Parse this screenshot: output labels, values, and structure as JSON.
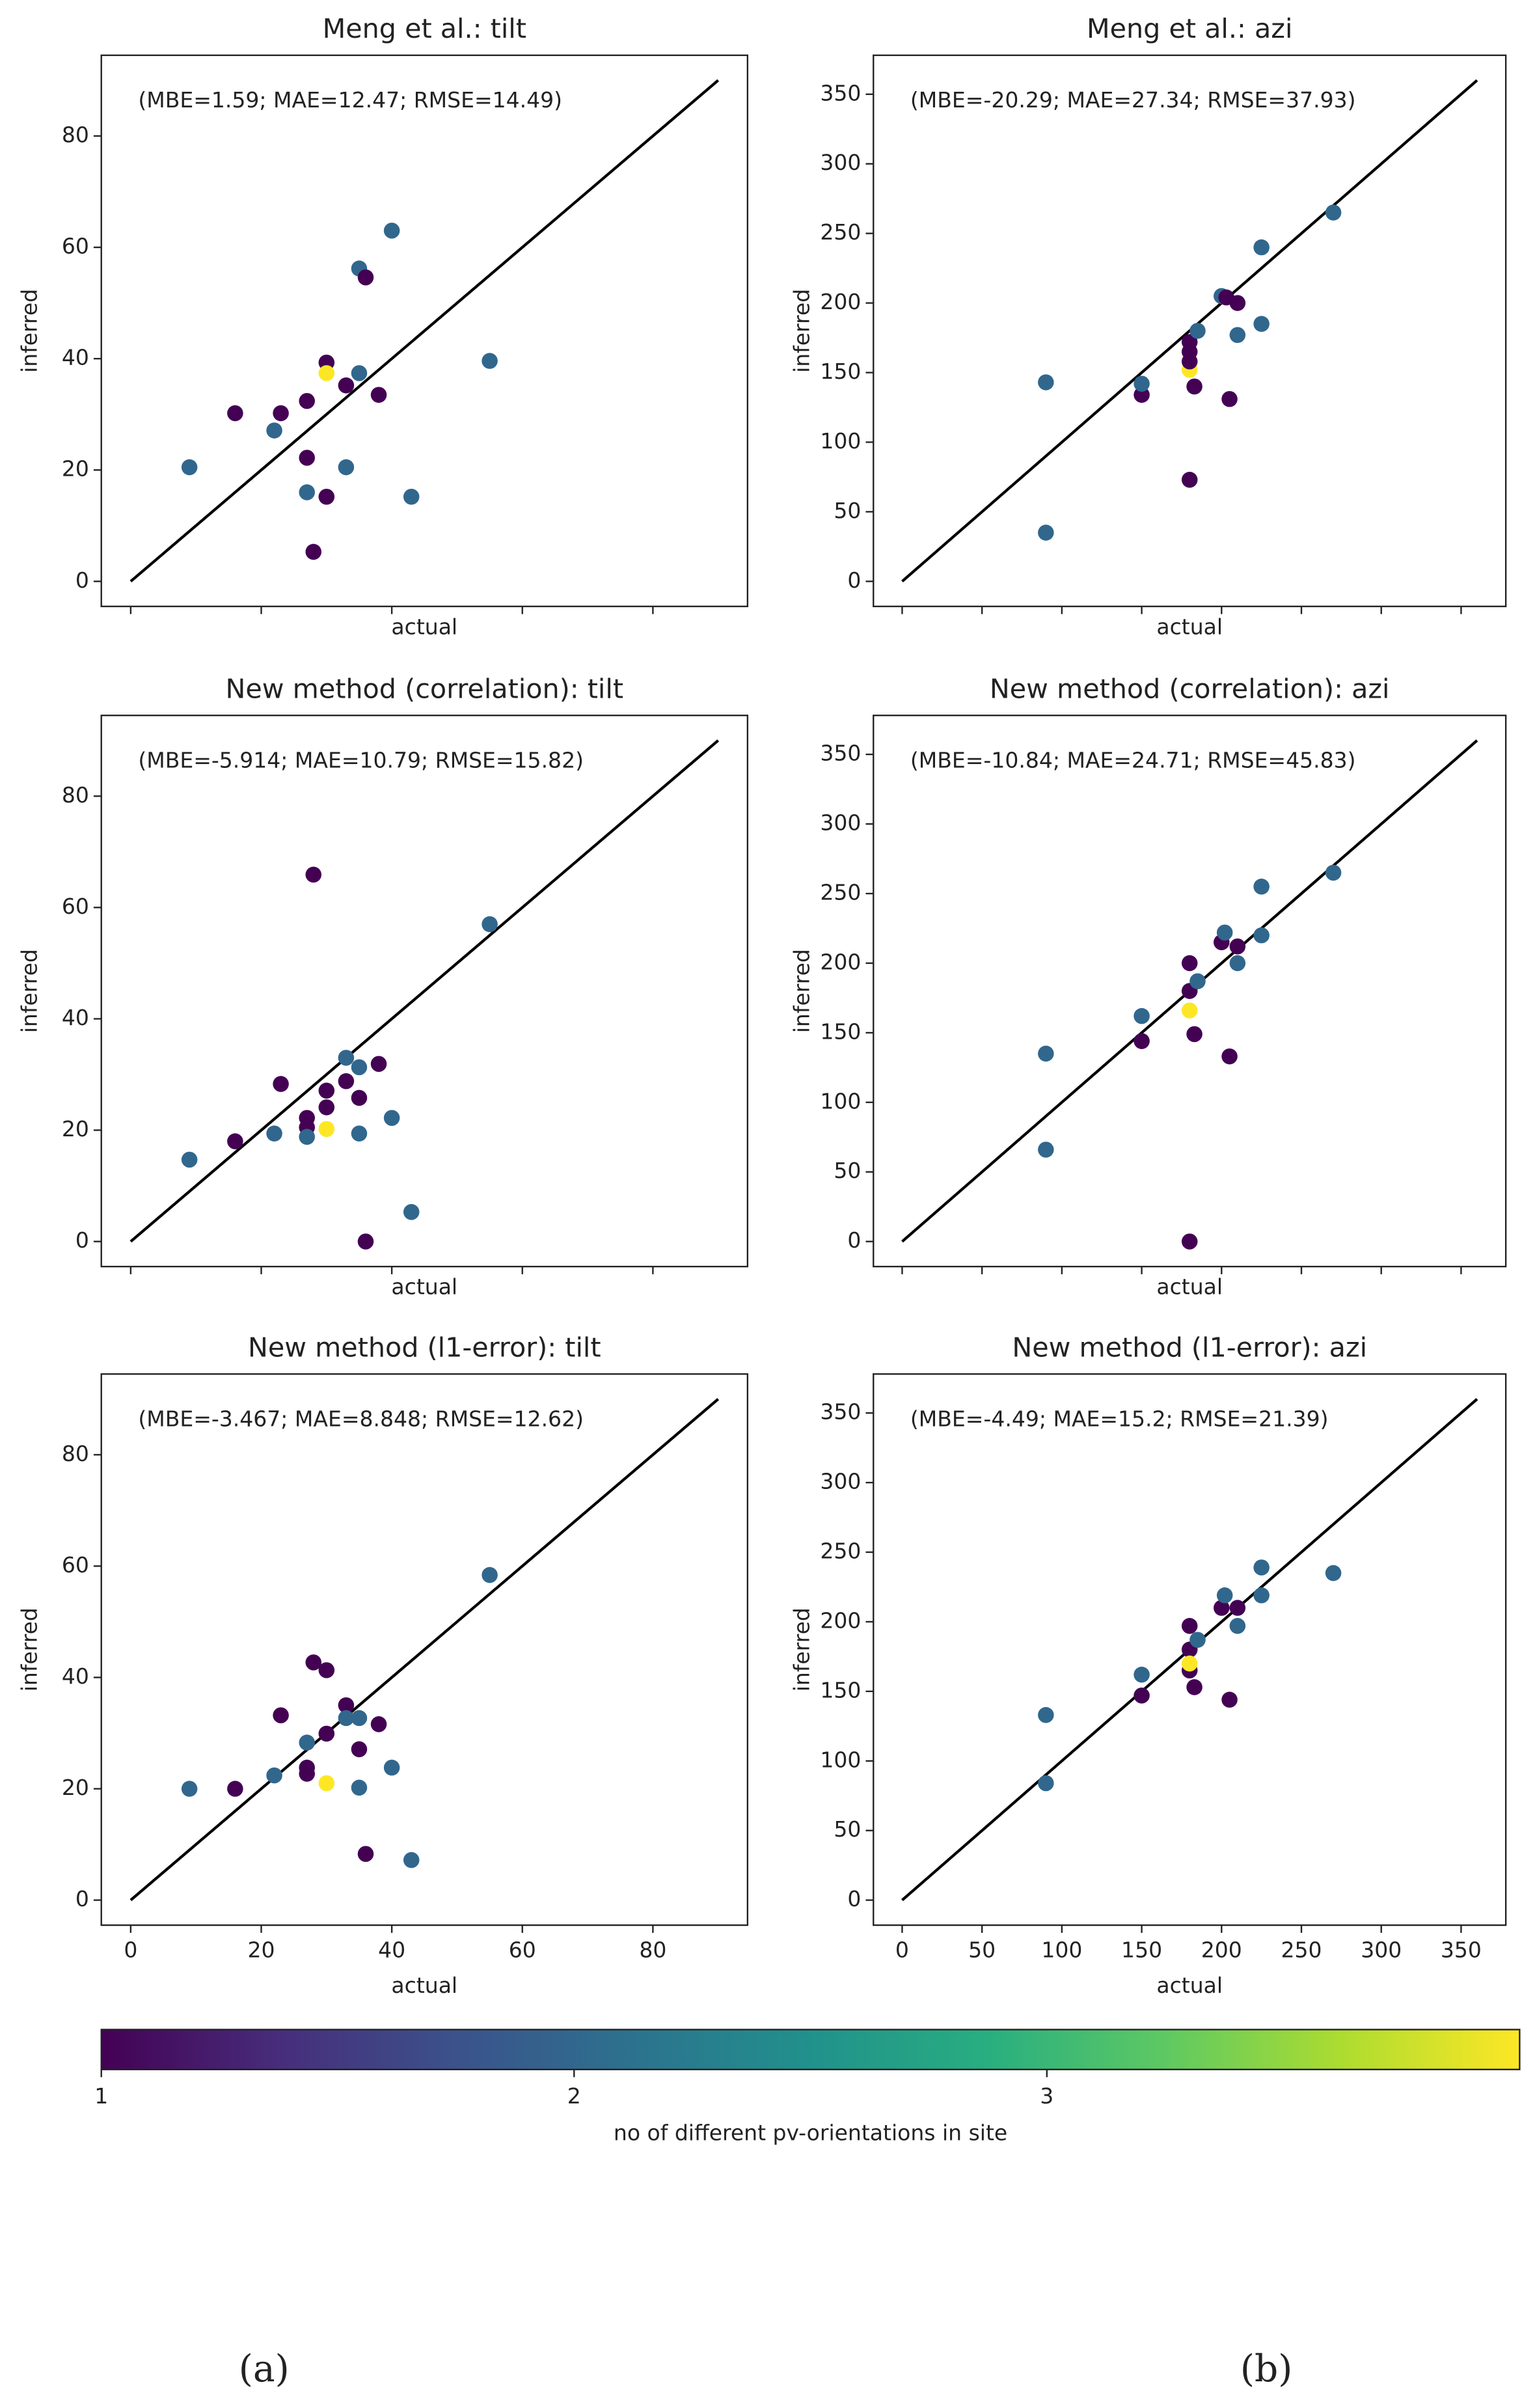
{
  "chart_data": [
    {
      "type": "scatter",
      "title": "Meng et al.: tilt",
      "annotation": "(MBE=1.59; MAE=12.47; RMSE=14.49)",
      "xlabel": "actual",
      "ylabel": "inferred",
      "show_xtick_labels": false,
      "x": [
        9,
        16,
        22,
        23,
        27,
        27,
        27,
        28,
        30,
        30,
        30,
        33,
        33,
        35,
        35,
        36,
        38,
        40,
        43,
        55
      ],
      "values": [
        20.5,
        30.2,
        27.1,
        30.2,
        32.4,
        22.2,
        16,
        5.3,
        39.3,
        37.4,
        15.2,
        35.2,
        20.5,
        37.4,
        56.2,
        54.6,
        33.5,
        63,
        15.2,
        39.6
      ],
      "color_values": [
        2,
        1,
        2,
        1,
        1,
        1,
        2,
        1,
        1,
        4,
        1,
        1,
        2,
        2,
        2,
        1,
        1,
        2,
        2,
        2
      ],
      "reference_line": {
        "x": [
          0,
          90
        ],
        "y": [
          0,
          90
        ]
      },
      "xlim": [
        -4.5,
        94.5
      ],
      "ylim": [
        -4.5,
        94.5
      ],
      "xticks": [
        0,
        20,
        40,
        60,
        80
      ],
      "yticks": [
        0,
        20,
        40,
        60,
        80
      ]
    },
    {
      "type": "scatter",
      "title": "Meng et al.: azi",
      "annotation": "(MBE=-20.29; MAE=27.34; RMSE=37.93)",
      "xlabel": "actual",
      "ylabel": "inferred",
      "show_xtick_labels": false,
      "x": [
        90,
        90,
        150,
        150,
        180,
        180,
        180,
        180,
        180,
        183,
        185,
        200,
        203,
        210,
        210,
        205,
        225,
        225,
        270
      ],
      "values": [
        143,
        35,
        134,
        142,
        73,
        152,
        158,
        165,
        172,
        140,
        180,
        205,
        204,
        200,
        177,
        131,
        240,
        185,
        265
      ],
      "color_values": [
        2,
        2,
        1,
        2,
        1,
        4,
        1,
        1,
        1,
        1,
        2,
        2,
        1,
        1,
        2,
        1,
        2,
        2,
        2
      ],
      "reference_line": {
        "x": [
          0,
          360
        ],
        "y": [
          0,
          360
        ]
      },
      "xlim": [
        -18,
        378
      ],
      "ylim": [
        -18,
        378
      ],
      "xticks": [
        0,
        50,
        100,
        150,
        200,
        250,
        300,
        350
      ],
      "yticks": [
        0,
        50,
        100,
        150,
        200,
        250,
        300,
        350
      ]
    },
    {
      "type": "scatter",
      "title": "New method (correlation): tilt",
      "annotation": "(MBE=-5.914; MAE=10.79; RMSE=15.82)",
      "xlabel": "actual",
      "ylabel": "inferred",
      "show_xtick_labels": false,
      "x": [
        9,
        16,
        22,
        23,
        27,
        27,
        27,
        28,
        30,
        30,
        30,
        33,
        33,
        35,
        35,
        38,
        35,
        36,
        40,
        43,
        55
      ],
      "values": [
        14.7,
        18,
        19.4,
        28.3,
        22.2,
        20.5,
        18.8,
        65.9,
        27.1,
        24.1,
        20.2,
        33,
        28.8,
        31.3,
        25.8,
        31.9,
        19.4,
        0,
        22.2,
        5.3,
        57
      ],
      "color_values": [
        2,
        1,
        2,
        1,
        1,
        1,
        2,
        1,
        1,
        1,
        4,
        2,
        1,
        2,
        1,
        1,
        2,
        1,
        2,
        2,
        2
      ],
      "reference_line": {
        "x": [
          0,
          90
        ],
        "y": [
          0,
          90
        ]
      },
      "xlim": [
        -4.5,
        94.5
      ],
      "ylim": [
        -4.5,
        94.5
      ],
      "xticks": [
        0,
        20,
        40,
        60,
        80
      ],
      "yticks": [
        0,
        20,
        40,
        60,
        80
      ]
    },
    {
      "type": "scatter",
      "title": "New method (correlation): azi",
      "annotation": "(MBE=-10.84; MAE=24.71; RMSE=45.83)",
      "xlabel": "actual",
      "ylabel": "inferred",
      "show_xtick_labels": false,
      "x": [
        90,
        90,
        150,
        150,
        180,
        180,
        180,
        180,
        183,
        185,
        200,
        202,
        210,
        210,
        205,
        225,
        225,
        270
      ],
      "values": [
        135,
        66,
        162,
        144,
        200,
        180,
        166,
        0,
        149,
        187,
        215,
        222,
        212,
        200,
        133,
        255,
        220,
        265
      ],
      "color_values": [
        2,
        2,
        2,
        1,
        1,
        1,
        4,
        1,
        1,
        2,
        1,
        2,
        1,
        2,
        1,
        2,
        2,
        2
      ],
      "reference_line": {
        "x": [
          0,
          360
        ],
        "y": [
          0,
          360
        ]
      },
      "xlim": [
        -18,
        378
      ],
      "ylim": [
        -18,
        378
      ],
      "xticks": [
        0,
        50,
        100,
        150,
        200,
        250,
        300,
        350
      ],
      "yticks": [
        0,
        50,
        100,
        150,
        200,
        250,
        300,
        350
      ]
    },
    {
      "type": "scatter",
      "title": "New method (l1-error): tilt",
      "annotation": "(MBE=-3.467; MAE=8.848; RMSE=12.62)",
      "xlabel": "actual",
      "ylabel": "inferred",
      "show_xtick_labels": true,
      "x": [
        9,
        16,
        22,
        23,
        27,
        27,
        27,
        28,
        30,
        30,
        30,
        33,
        33,
        35,
        35,
        38,
        35,
        36,
        40,
        43,
        55
      ],
      "values": [
        20,
        20,
        22.4,
        33.2,
        28.3,
        23.8,
        22.7,
        42.7,
        41.3,
        29.9,
        21,
        35,
        32.7,
        32.7,
        27.1,
        31.6,
        20.2,
        8.3,
        23.8,
        7.2,
        58.4
      ],
      "color_values": [
        2,
        1,
        2,
        1,
        2,
        1,
        1,
        1,
        1,
        1,
        4,
        1,
        2,
        2,
        1,
        1,
        2,
        1,
        2,
        2,
        2
      ],
      "reference_line": {
        "x": [
          0,
          90
        ],
        "y": [
          0,
          90
        ]
      },
      "xlim": [
        -4.5,
        94.5
      ],
      "ylim": [
        -4.5,
        94.5
      ],
      "xticks": [
        0,
        20,
        40,
        60,
        80
      ],
      "yticks": [
        0,
        20,
        40,
        60,
        80
      ]
    },
    {
      "type": "scatter",
      "title": "New method (l1-error): azi",
      "annotation": "(MBE=-4.49; MAE=15.2; RMSE=21.39)",
      "xlabel": "actual",
      "ylabel": "inferred",
      "show_xtick_labels": true,
      "x": [
        90,
        90,
        150,
        150,
        180,
        180,
        180,
        180,
        183,
        185,
        200,
        202,
        210,
        210,
        205,
        225,
        225,
        270
      ],
      "values": [
        133,
        84,
        162,
        147,
        197,
        180,
        165,
        170,
        153,
        187,
        210,
        219,
        210,
        197,
        144,
        239,
        219,
        235
      ],
      "color_values": [
        2,
        2,
        2,
        1,
        1,
        1,
        1,
        4,
        1,
        2,
        1,
        2,
        1,
        2,
        1,
        2,
        2,
        2
      ],
      "reference_line": {
        "x": [
          0,
          360
        ],
        "y": [
          0,
          360
        ]
      },
      "xlim": [
        -18,
        378
      ],
      "ylim": [
        -18,
        378
      ],
      "xticks": [
        0,
        50,
        100,
        150,
        200,
        250,
        300,
        350
      ],
      "yticks": [
        0,
        50,
        100,
        150,
        200,
        250,
        300,
        350
      ]
    }
  ],
  "colorbar": {
    "label": "no of different pv-orientations in site",
    "clim": [
      1,
      4
    ],
    "ticks": [
      1,
      2,
      3
    ],
    "colormap": [
      "#440154",
      "#472d7b",
      "#3b528b",
      "#2c728e",
      "#21918c",
      "#28ae80",
      "#5ec962",
      "#addc30",
      "#fde725"
    ]
  },
  "panel_labels": [
    "(a)",
    "(b)"
  ]
}
